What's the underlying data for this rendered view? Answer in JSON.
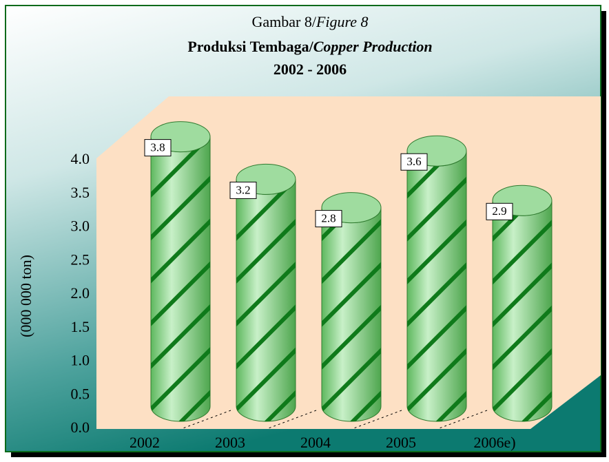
{
  "chart_data": {
    "type": "bar",
    "title": [
      "Gambar 8/",
      "Figure 8"
    ],
    "subtitle": [
      "Produksi Tembaga/",
      "Copper Production"
    ],
    "period": "2002 - 2006",
    "y_label": "(000 000 ton)",
    "categories": [
      "2002",
      "2003",
      "2004",
      "2005",
      "2006e)"
    ],
    "values": [
      3.8,
      3.2,
      2.8,
      3.6,
      2.9
    ],
    "color": "#7ccc7c",
    "stripe_color": "#0f7a1a",
    "ylim": [
      0,
      4.0
    ],
    "yticks": [
      {
        "value": 0,
        "label": "0.0"
      },
      {
        "value": 0.5,
        "label": "0.5"
      },
      {
        "value": 1.0,
        "label": "1.0"
      },
      {
        "value": 1.5,
        "label": "1.5"
      },
      {
        "value": 2.0,
        "label": "2.0"
      },
      {
        "value": 2.5,
        "label": "2.5"
      },
      {
        "value": 3.0,
        "label": "3.0"
      },
      {
        "value": 3.5,
        "label": "3.5"
      },
      {
        "value": 4.0,
        "label": "4.0"
      }
    ]
  }
}
